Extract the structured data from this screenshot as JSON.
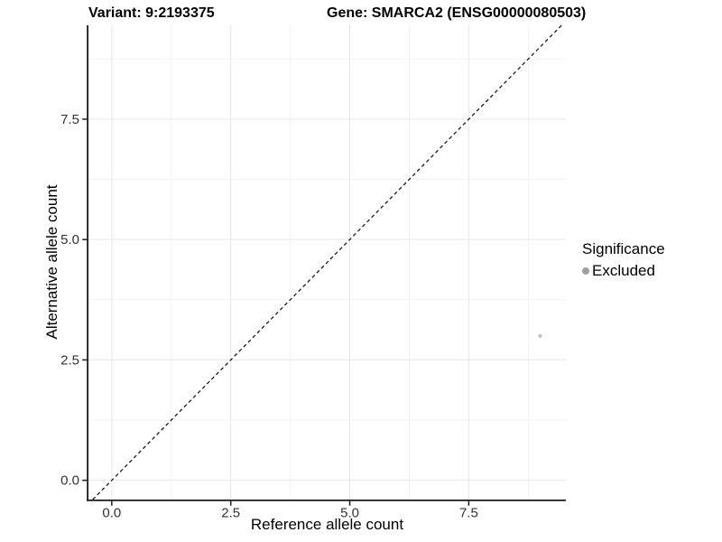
{
  "chart_data": {
    "type": "scatter",
    "titles": {
      "variant": "Variant: 9:2193375",
      "gene": "Gene: SMARCA2 (ENSG00000080503)"
    },
    "xlabel": "Reference allele count",
    "ylabel": "Alternative allele count",
    "xlim": [
      -0.49,
      9.54
    ],
    "ylim": [
      -0.4,
      9.45
    ],
    "x_ticks": {
      "values": [
        0,
        2.5,
        5,
        7.5
      ],
      "labels": [
        "0.0",
        "2.5",
        "5.0",
        "7.5"
      ]
    },
    "y_ticks": {
      "values": [
        0,
        2.5,
        5,
        7.5
      ],
      "labels": [
        "0.0",
        "2.5",
        "5.0",
        "7.5"
      ]
    },
    "x_minor": [
      1.25,
      3.75,
      6.25,
      8.75
    ],
    "y_minor": [
      1.25,
      3.75,
      6.25,
      8.75
    ],
    "grid": {
      "major_color": "#e7e7e7",
      "minor_color": "#f3f3f3",
      "background": "#ffffff"
    },
    "axis_color": "#1a1a1a",
    "tick_label_color": "#333333",
    "reference_line": {
      "type": "identity",
      "slope": 1,
      "intercept": 0,
      "style": "dashed",
      "color": "#1a1a1a",
      "span": [
        -0.4,
        9.45
      ]
    },
    "points": [
      {
        "x": 9,
        "y": 3,
        "series": "Excluded",
        "color": "#c4c4c4",
        "radius": 2.2
      }
    ],
    "legend": {
      "title": "Significance",
      "position": "right",
      "items": [
        {
          "label": "Excluded",
          "color": "#a0a0a0"
        }
      ]
    }
  }
}
